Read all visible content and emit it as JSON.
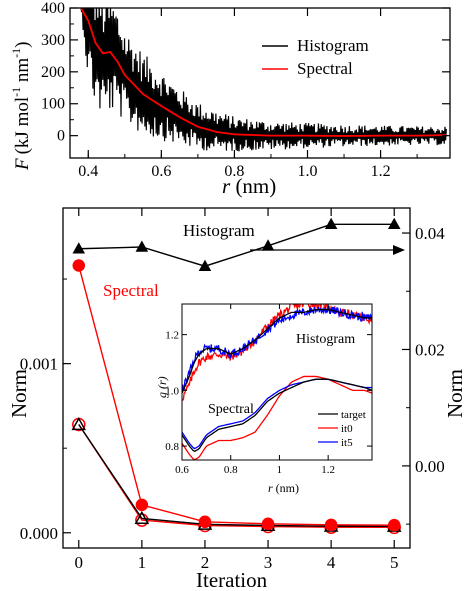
{
  "chart_data": [
    {
      "type": "line",
      "panel": "top",
      "xlabel": "r (nm)",
      "ylabel": "F (kJ mol⁻¹ nm⁻¹)",
      "ylabel_parts": {
        "letter": "F",
        "a": "(kJ mol",
        "sup1": "-1",
        "b": " nm",
        "sup2": "-1",
        "c": ")"
      },
      "xlabel_parts": {
        "letter": "r",
        "rest": " (nm)"
      },
      "xlim": [
        0.35,
        1.39
      ],
      "ylim": [
        -70,
        400
      ],
      "xticks": [
        0.4,
        0.6,
        0.8,
        1.0,
        1.2
      ],
      "xtick_labels": [
        "0.4",
        "0.6",
        "0.8",
        "1.0",
        "1.2"
      ],
      "yticks": [
        0,
        100,
        200,
        300,
        400
      ],
      "ytick_labels": [
        "0",
        "100",
        "200",
        "300",
        "400"
      ],
      "legend": {
        "placement": "top-right",
        "entries": [
          "Histogram",
          "Spectral"
        ]
      },
      "series": [
        {
          "name": "Histogram",
          "color": "#000000",
          "style": "noisy force profile, oscillating around the spectral curve",
          "x": [
            0.38,
            0.4,
            0.42,
            0.44,
            0.46,
            0.48,
            0.5,
            0.55,
            0.6,
            0.65,
            0.7,
            0.75,
            0.8,
            0.9,
            1.0,
            1.1,
            1.2,
            1.3,
            1.38
          ],
          "y": [
            400,
            360,
            290,
            250,
            260,
            235,
            190,
            130,
            95,
            60,
            30,
            15,
            5,
            0,
            0,
            0,
            0,
            0,
            0
          ],
          "noise_amplitude": [
            0,
            200,
            200,
            200,
            190,
            170,
            150,
            130,
            110,
            90,
            75,
            65,
            55,
            45,
            40,
            35,
            32,
            30,
            30
          ]
        },
        {
          "name": "Spectral",
          "color": "#ff0000",
          "x": [
            0.38,
            0.4,
            0.42,
            0.44,
            0.46,
            0.48,
            0.5,
            0.55,
            0.6,
            0.65,
            0.7,
            0.75,
            0.8,
            0.9,
            1.0,
            1.1,
            1.2,
            1.3,
            1.38
          ],
          "y": [
            400,
            360,
            290,
            258,
            262,
            232,
            190,
            130,
            93,
            58,
            28,
            12,
            4,
            0,
            0,
            -1,
            0,
            0,
            2
          ]
        }
      ]
    },
    {
      "type": "line",
      "panel": "bottom",
      "xlabel": "Iteration",
      "ylabel_left": "Norm",
      "ylabel_right": "Norm",
      "xlim": [
        -0.25,
        5.25
      ],
      "xticks": [
        0,
        1,
        2,
        3,
        4,
        5
      ],
      "xtick_labels": [
        "0",
        "1",
        "2",
        "3",
        "4",
        "5"
      ],
      "ylim_left": [
        -9e-05,
        0.00192
      ],
      "yticks_left": [
        0.0,
        0.001
      ],
      "ytick_labels_left": [
        "0.000",
        "0.001"
      ],
      "ylim_right": [
        -0.0141,
        0.0443
      ],
      "yticks_right": [
        0.0,
        0.02,
        0.04
      ],
      "ytick_labels_right": [
        "0.00",
        "0.02",
        "0.04"
      ],
      "annotations": [
        {
          "text": "Histogram",
          "color": "#000000"
        },
        {
          "text": "Spectral",
          "color": "#ff0000"
        }
      ],
      "arrow": {
        "direction": "right",
        "note": "Histogram series uses the right axis"
      },
      "series": [
        {
          "name": "Histogram",
          "axis": "right",
          "color": "#000000",
          "marker": "filled-triangle",
          "x": [
            0,
            1,
            2,
            3,
            4,
            5
          ],
          "y": [
            0.0373,
            0.0376,
            0.0343,
            0.0378,
            0.0415,
            0.0415
          ]
        },
        {
          "name": "Spectral",
          "axis": "left",
          "color": "#ff0000",
          "marker": "filled-circle",
          "x": [
            0,
            1,
            2,
            3,
            4,
            5
          ],
          "y": [
            0.00158,
            0.000165,
            6.5e-05,
            5.3e-05,
            4.7e-05,
            4.5e-05
          ]
        },
        {
          "axis": "left",
          "color": "#ff0000",
          "marker": "open-circle",
          "x": [
            0,
            1,
            2,
            3,
            4,
            5
          ],
          "y": [
            0.00064,
            7.5e-05,
            4.3e-05,
            3.7e-05,
            3.3e-05,
            3.2e-05
          ]
        },
        {
          "axis": "left",
          "color": "#000000",
          "marker": "open-triangle",
          "x": [
            0,
            1,
            2,
            3,
            4,
            5
          ],
          "y": [
            0.00064,
            8.5e-05,
            5e-05,
            4.3e-05,
            3.9e-05,
            3.8e-05
          ]
        }
      ]
    },
    {
      "type": "line",
      "panel": "inset",
      "xlabel": "r (nm)",
      "xlabel_parts": {
        "letter": "r",
        "rest": " (nm)"
      },
      "ylabel": "g (r)",
      "xlim": [
        0.6,
        1.38
      ],
      "ylim": [
        0.75,
        1.31
      ],
      "xticks": [
        0.6,
        0.8,
        1.0,
        1.2
      ],
      "xtick_labels": [
        "0.6",
        "0.8",
        "1",
        "1.2"
      ],
      "yticks": [
        0.8,
        1.0,
        1.2
      ],
      "ytick_labels": [
        "0.8",
        "1.0",
        "1.2"
      ],
      "annotations": [
        {
          "text": "Histogram",
          "color": "#000000"
        },
        {
          "text": "Spectral",
          "color": "#000000"
        }
      ],
      "legend": {
        "placement": "bottom-right",
        "entries": [
          "target",
          "it0",
          "it5"
        ]
      },
      "series": [
        {
          "name": "target",
          "color": "#000000",
          "group": "Histogram",
          "x": [
            0.6,
            0.63,
            0.65,
            0.67,
            0.7,
            0.75,
            0.8,
            0.85,
            0.9,
            0.95,
            1.0,
            1.05,
            1.1,
            1.15,
            1.2,
            1.25,
            1.3,
            1.35,
            1.38
          ],
          "y": [
            0.99,
            1.05,
            1.1,
            1.13,
            1.15,
            1.15,
            1.13,
            1.15,
            1.18,
            1.22,
            1.26,
            1.28,
            1.28,
            1.29,
            1.29,
            1.28,
            1.27,
            1.26,
            1.26
          ]
        },
        {
          "name": "it0",
          "color": "#ff0000",
          "group": "Histogram",
          "x": [
            0.6,
            0.63,
            0.65,
            0.67,
            0.7,
            0.75,
            0.8,
            0.85,
            0.9,
            0.95,
            1.0,
            1.05,
            1.1,
            1.15,
            1.2,
            1.25,
            1.3,
            1.35,
            1.38
          ],
          "y": [
            0.97,
            1.02,
            1.07,
            1.1,
            1.12,
            1.13,
            1.12,
            1.14,
            1.18,
            1.23,
            1.27,
            1.3,
            1.31,
            1.31,
            1.3,
            1.28,
            1.27,
            1.26,
            1.25
          ]
        },
        {
          "name": "it5",
          "color": "#0000ff",
          "group": "Histogram",
          "x": [
            0.6,
            0.63,
            0.65,
            0.67,
            0.7,
            0.75,
            0.8,
            0.85,
            0.9,
            0.95,
            1.0,
            1.05,
            1.1,
            1.15,
            1.2,
            1.25,
            1.3,
            1.35,
            1.38
          ],
          "y": [
            1.0,
            1.06,
            1.11,
            1.14,
            1.15,
            1.15,
            1.13,
            1.15,
            1.18,
            1.22,
            1.25,
            1.27,
            1.28,
            1.29,
            1.29,
            1.28,
            1.27,
            1.26,
            1.26
          ]
        },
        {
          "name": "target",
          "color": "#000000",
          "group": "Spectral",
          "x": [
            0.6,
            0.63,
            0.65,
            0.67,
            0.7,
            0.75,
            0.8,
            0.85,
            0.9,
            0.95,
            1.0,
            1.05,
            1.1,
            1.15,
            1.2,
            1.25,
            1.3,
            1.35,
            1.38
          ],
          "y": [
            0.84,
            0.8,
            0.78,
            0.79,
            0.83,
            0.86,
            0.87,
            0.88,
            0.91,
            0.96,
            0.99,
            1.01,
            1.03,
            1.04,
            1.04,
            1.03,
            1.02,
            1.01,
            1.0
          ]
        },
        {
          "name": "it0",
          "color": "#ff0000",
          "group": "Spectral",
          "x": [
            0.6,
            0.63,
            0.65,
            0.67,
            0.7,
            0.75,
            0.8,
            0.85,
            0.9,
            0.95,
            1.0,
            1.05,
            1.1,
            1.15,
            1.2,
            1.25,
            1.3,
            1.35,
            1.38
          ],
          "y": [
            0.81,
            0.77,
            0.75,
            0.76,
            0.8,
            0.82,
            0.82,
            0.83,
            0.85,
            0.91,
            0.98,
            1.03,
            1.05,
            1.05,
            1.04,
            1.02,
            1.0,
            1.0,
            0.99
          ]
        },
        {
          "name": "it5",
          "color": "#0000ff",
          "group": "Spectral",
          "x": [
            0.6,
            0.63,
            0.65,
            0.67,
            0.7,
            0.75,
            0.8,
            0.85,
            0.9,
            0.95,
            1.0,
            1.05,
            1.1,
            1.15,
            1.2,
            1.25,
            1.3,
            1.35,
            1.38
          ],
          "y": [
            0.85,
            0.81,
            0.79,
            0.8,
            0.84,
            0.87,
            0.88,
            0.89,
            0.92,
            0.97,
            1.0,
            1.02,
            1.03,
            1.04,
            1.04,
            1.03,
            1.02,
            1.01,
            1.01
          ]
        }
      ]
    }
  ]
}
